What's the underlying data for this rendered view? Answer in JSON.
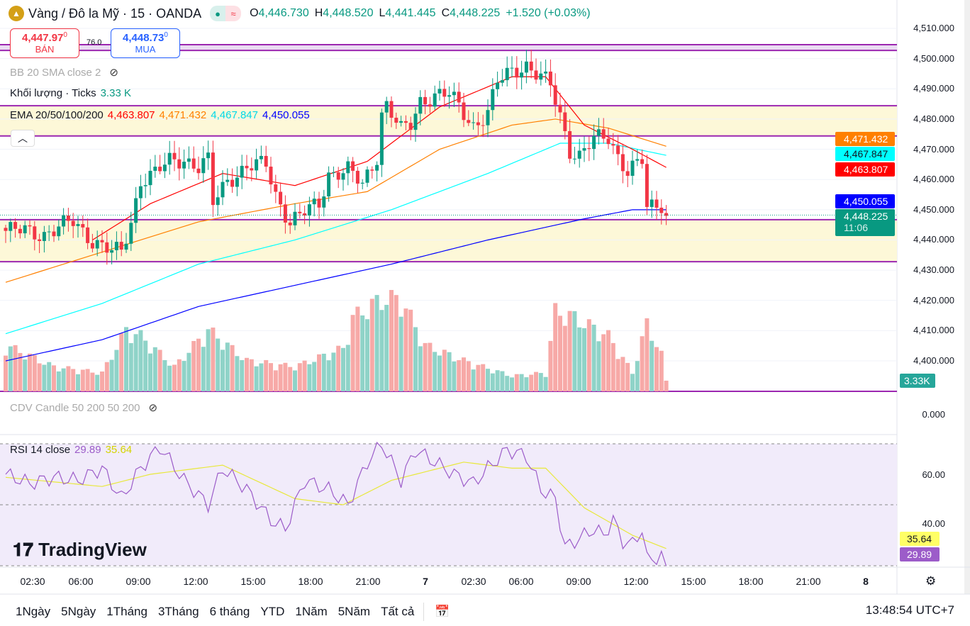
{
  "header": {
    "symbol": "Vàng / Đô la Mỹ · 15 · OANDA",
    "open_label": "O",
    "open": "4,446.730",
    "high_label": "H",
    "high": "4,448.520",
    "low_label": "L",
    "low": "4,441.445",
    "close_label": "C",
    "close": "4,448.225",
    "change": "+1.520 (+0.03%)"
  },
  "trade": {
    "sell_price": "4,447.97",
    "sell_sup": "0",
    "sell_label": "BÁN",
    "spread": "76.0",
    "buy_price": "4,448.73",
    "buy_sup": "0",
    "buy_label": "MUA"
  },
  "legend": {
    "bb": "BB 20 SMA close 2",
    "volume": "Khối lượng · Ticks",
    "volume_value": "3.33 K",
    "ema": "EMA 20/50/100/200",
    "ema20": "4,463.807",
    "ema50": "4,471.432",
    "ema100": "4,467.847",
    "ema200": "4,450.055",
    "cdv": "CDV Candle 50 200 50 200",
    "rsi": "RSI 14 close",
    "rsi_value": "29.89",
    "rsi_ma": "35.64"
  },
  "price_axis": [
    "4,510.000",
    "4,500.000",
    "4,490.000",
    "4,480.000",
    "4,470.000",
    "4,460.000",
    "4,450.000",
    "4,440.000",
    "4,430.000",
    "4,420.000",
    "4,410.000",
    "4,400.000"
  ],
  "price_tags": {
    "ema50": "4,471.432",
    "ema100": "4,467.847",
    "ema20": "4,463.807",
    "ema200": "4,450.055",
    "last": "4,448.225",
    "countdown": "11:06",
    "volume": "3.33K"
  },
  "cdv_axis": "0.000",
  "rsi_axis": [
    "60.00",
    "40.00"
  ],
  "rsi_tags": {
    "ma": "35.64",
    "rsi": "29.89"
  },
  "time_axis": [
    "02:30",
    "06:00",
    "09:00",
    "12:00",
    "15:00",
    "18:00",
    "21:00",
    "7",
    "02:30",
    "06:00",
    "09:00",
    "12:00",
    "15:00",
    "18:00",
    "21:00",
    "8"
  ],
  "ranges": [
    "1Ngày",
    "5Ngày",
    "1Tháng",
    "3Tháng",
    "6 tháng",
    "YTD",
    "1Năm",
    "5Năm",
    "Tất cả"
  ],
  "clock": "13:48:54 UTC+7",
  "watermark": "TradingView",
  "colors": {
    "up": "#089981",
    "down": "#f23645",
    "ema20": "#ff0000",
    "ema50": "#ff8000",
    "ema100": "#00ffff",
    "ema200": "#0000ff",
    "level": "#9c27b0",
    "rsi": "#9c5cc9",
    "rsi_ma": "#e8e83a"
  },
  "chart_data": {
    "type": "candlestick",
    "bars": 138,
    "close_keypoints": [
      [
        0,
        4443
      ],
      [
        4,
        4443
      ],
      [
        8,
        4442
      ],
      [
        14,
        4446
      ],
      [
        18,
        4440
      ],
      [
        22,
        4436
      ],
      [
        24,
        4436
      ],
      [
        26,
        4446
      ],
      [
        28,
        4460
      ],
      [
        31,
        4462
      ],
      [
        34,
        4466
      ],
      [
        37,
        4467
      ],
      [
        40,
        4464
      ],
      [
        42,
        4466
      ],
      [
        43,
        4452
      ],
      [
        46,
        4460
      ],
      [
        50,
        4464
      ],
      [
        54,
        4465
      ],
      [
        56,
        4455
      ],
      [
        59,
        4446
      ],
      [
        61,
        4448
      ],
      [
        65,
        4452
      ],
      [
        67,
        4462
      ],
      [
        71,
        4463
      ],
      [
        74,
        4458
      ],
      [
        77,
        4468
      ],
      [
        78,
        4482
      ],
      [
        79,
        4485
      ],
      [
        82,
        4476
      ],
      [
        84,
        4478
      ],
      [
        86,
        4486
      ],
      [
        89,
        4488
      ],
      [
        92,
        4488
      ],
      [
        95,
        4482
      ],
      [
        97,
        4478
      ],
      [
        100,
        4482
      ],
      [
        102,
        4492
      ],
      [
        105,
        4496
      ],
      [
        108,
        4498
      ],
      [
        110,
        4495
      ],
      [
        113,
        4491
      ],
      [
        115,
        4481
      ],
      [
        117,
        4470
      ],
      [
        119,
        4468
      ],
      [
        122,
        4473
      ],
      [
        125,
        4474
      ],
      [
        127,
        4468
      ],
      [
        129,
        4463
      ],
      [
        132,
        4466
      ],
      [
        133,
        4450
      ],
      [
        136,
        4452
      ],
      [
        137,
        4448
      ]
    ],
    "ema20": [
      [
        18,
        4440
      ],
      [
        30,
        4452
      ],
      [
        45,
        4462
      ],
      [
        60,
        4458
      ],
      [
        75,
        4466
      ],
      [
        90,
        4484
      ],
      [
        105,
        4494
      ],
      [
        112,
        4494
      ],
      [
        120,
        4478
      ],
      [
        130,
        4470
      ],
      [
        137,
        4464
      ]
    ],
    "ema50": [
      [
        0,
        4426
      ],
      [
        20,
        4436
      ],
      [
        40,
        4446
      ],
      [
        60,
        4452
      ],
      [
        75,
        4456
      ],
      [
        90,
        4470
      ],
      [
        105,
        4478
      ],
      [
        114,
        4480
      ],
      [
        125,
        4477
      ],
      [
        137,
        4471
      ]
    ],
    "ema100": [
      [
        0,
        4409
      ],
      [
        20,
        4419
      ],
      [
        40,
        4432
      ],
      [
        60,
        4440
      ],
      [
        80,
        4450
      ],
      [
        100,
        4462
      ],
      [
        115,
        4472
      ],
      [
        125,
        4472
      ],
      [
        137,
        4468
      ]
    ],
    "ema200": [
      [
        0,
        4400
      ],
      [
        20,
        4407
      ],
      [
        40,
        4418
      ],
      [
        60,
        4425
      ],
      [
        80,
        4432
      ],
      [
        100,
        4440
      ],
      [
        120,
        4447
      ],
      [
        130,
        4450
      ],
      [
        137,
        4450
      ]
    ],
    "volume_keypoints_k": [
      [
        0,
        15
      ],
      [
        10,
        8
      ],
      [
        20,
        6
      ],
      [
        25,
        20
      ],
      [
        28,
        18
      ],
      [
        35,
        8
      ],
      [
        42,
        20
      ],
      [
        50,
        10
      ],
      [
        60,
        8
      ],
      [
        70,
        14
      ],
      [
        72,
        24
      ],
      [
        78,
        30
      ],
      [
        82,
        30
      ],
      [
        87,
        15
      ],
      [
        95,
        10
      ],
      [
        105,
        5
      ],
      [
        112,
        6
      ],
      [
        114,
        26
      ],
      [
        118,
        24
      ],
      [
        125,
        18
      ],
      [
        130,
        6
      ],
      [
        133,
        22
      ],
      [
        136,
        12
      ],
      [
        137,
        3.33
      ]
    ],
    "rsi": {
      "ylim": [
        30,
        70
      ],
      "levels": [
        70,
        50,
        30
      ],
      "keypoints": [
        [
          0,
          60
        ],
        [
          5,
          57
        ],
        [
          10,
          59
        ],
        [
          15,
          58
        ],
        [
          20,
          62
        ],
        [
          24,
          52
        ],
        [
          28,
          62
        ],
        [
          32,
          69
        ],
        [
          37,
          58
        ],
        [
          42,
          50
        ],
        [
          45,
          62
        ],
        [
          50,
          55
        ],
        [
          55,
          45
        ],
        [
          58,
          42
        ],
        [
          62,
          58
        ],
        [
          67,
          55
        ],
        [
          71,
          50
        ],
        [
          75,
          64
        ],
        [
          78,
          70
        ],
        [
          82,
          58
        ],
        [
          85,
          68
        ],
        [
          89,
          64
        ],
        [
          93,
          60
        ],
        [
          97,
          57
        ],
        [
          100,
          62
        ],
        [
          104,
          68
        ],
        [
          108,
          66
        ],
        [
          111,
          55
        ],
        [
          114,
          52
        ],
        [
          116,
          36
        ],
        [
          119,
          39
        ],
        [
          122,
          42
        ],
        [
          124,
          40
        ],
        [
          126,
          45
        ],
        [
          128,
          38
        ],
        [
          130,
          37
        ],
        [
          132,
          42
        ],
        [
          133,
          32
        ],
        [
          136,
          33
        ],
        [
          137,
          29.89
        ]
      ],
      "ma_keypoints": [
        [
          0,
          59
        ],
        [
          20,
          56
        ],
        [
          30,
          60
        ],
        [
          45,
          63
        ],
        [
          60,
          52
        ],
        [
          70,
          50
        ],
        [
          80,
          58
        ],
        [
          95,
          64
        ],
        [
          105,
          62
        ],
        [
          112,
          62
        ],
        [
          120,
          49
        ],
        [
          130,
          40
        ],
        [
          137,
          35.64
        ]
      ]
    },
    "levels": [
      4504.6,
      4502.7,
      4484.4,
      4474.4,
      4446.7,
      4432.8
    ]
  }
}
